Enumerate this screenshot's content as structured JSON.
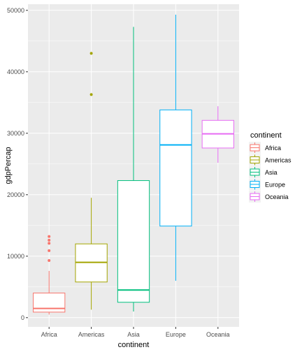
{
  "chart_data": {
    "type": "boxplot",
    "xlabel": "continent",
    "ylabel": "gdpPercap",
    "ylim": [
      -1500,
      51000
    ],
    "yticks": [
      0,
      10000,
      20000,
      30000,
      40000,
      50000
    ],
    "grid": true,
    "legend": {
      "title": "continent",
      "placement": "right"
    },
    "categories": [
      "Africa",
      "Americas",
      "Asia",
      "Europe",
      "Oceania"
    ],
    "series": [
      {
        "name": "Africa",
        "color": "#F8766D",
        "whisker_low": 500,
        "q1": 900,
        "median": 1500,
        "q3": 4000,
        "whisker_high": 7600,
        "outliers": [
          9300,
          10900,
          12100,
          12600,
          13200
        ]
      },
      {
        "name": "Americas",
        "color": "#A3A500",
        "whisker_low": 1300,
        "q1": 5800,
        "median": 9000,
        "q3": 12000,
        "whisker_high": 19500,
        "outliers": [
          36300,
          43000
        ]
      },
      {
        "name": "Asia",
        "color": "#00BF7D",
        "whisker_low": 1000,
        "q1": 2500,
        "median": 4500,
        "q3": 22300,
        "whisker_high": 47300,
        "outliers": []
      },
      {
        "name": "Europe",
        "color": "#00B0F6",
        "whisker_low": 6000,
        "q1": 14900,
        "median": 28100,
        "q3": 33800,
        "whisker_high": 49300,
        "outliers": []
      },
      {
        "name": "Oceania",
        "color": "#E76BF3",
        "whisker_low": 25200,
        "q1": 27600,
        "median": 29900,
        "q3": 32100,
        "whisker_high": 34400,
        "outliers": []
      }
    ]
  }
}
